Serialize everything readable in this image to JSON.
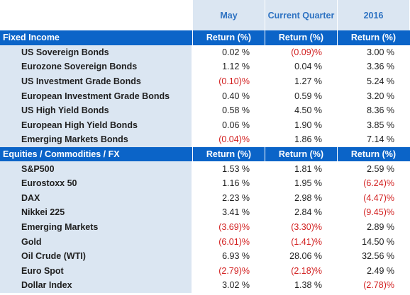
{
  "columns": [
    "May",
    "Current Quarter",
    "2016"
  ],
  "sections": [
    {
      "title": "Fixed Income",
      "subheaders": [
        "Return (%)",
        "Return (%)",
        "Return (%)"
      ],
      "rows": [
        {
          "name": "US Sovereign Bonds",
          "values": [
            "0.02 %",
            "(0.09)%",
            "3.00 %"
          ],
          "neg": [
            false,
            true,
            false
          ]
        },
        {
          "name": "Eurozone Sovereign Bonds",
          "values": [
            "1.12 %",
            "0.04 %",
            "3.36 %"
          ],
          "neg": [
            false,
            false,
            false
          ]
        },
        {
          "name": "US Investment Grade Bonds",
          "values": [
            "(0.10)%",
            "1.27 %",
            "5.24 %"
          ],
          "neg": [
            true,
            false,
            false
          ]
        },
        {
          "name": "European Investment Grade Bonds",
          "values": [
            "0.40 %",
            "0.59 %",
            "3.20 %"
          ],
          "neg": [
            false,
            false,
            false
          ]
        },
        {
          "name": "US High Yield Bonds",
          "values": [
            "0.58 %",
            "4.50 %",
            "8.36 %"
          ],
          "neg": [
            false,
            false,
            false
          ]
        },
        {
          "name": "European High Yield Bonds",
          "values": [
            "0.06 %",
            "1.90 %",
            "3.85 %"
          ],
          "neg": [
            false,
            false,
            false
          ]
        },
        {
          "name": "Emerging Markets Bonds",
          "values": [
            "(0.04)%",
            "1.86 %",
            "7.14 %"
          ],
          "neg": [
            true,
            false,
            false
          ]
        }
      ]
    },
    {
      "title": "Equities / Commodities / FX",
      "subheaders": [
        "Return (%)",
        "Return (%)",
        "Return (%)"
      ],
      "rows": [
        {
          "name": "S&P500",
          "values": [
            "1.53 %",
            "1.81 %",
            "2.59 %"
          ],
          "neg": [
            false,
            false,
            false
          ]
        },
        {
          "name": "Eurostoxx 50",
          "values": [
            "1.16 %",
            "1.95 %",
            "(6.24)%"
          ],
          "neg": [
            false,
            false,
            true
          ]
        },
        {
          "name": "DAX",
          "values": [
            "2.23 %",
            "2.98 %",
            "(4.47)%"
          ],
          "neg": [
            false,
            false,
            true
          ]
        },
        {
          "name": "Nikkei 225",
          "values": [
            "3.41 %",
            "2.84 %",
            "(9.45)%"
          ],
          "neg": [
            false,
            false,
            true
          ]
        },
        {
          "name": "Emerging Markets",
          "values": [
            "(3.69)%",
            "(3.30)%",
            "2.89 %"
          ],
          "neg": [
            true,
            true,
            false
          ]
        },
        {
          "name": "Gold",
          "values": [
            "(6.01)%",
            "(1.41)%",
            "14.50 %"
          ],
          "neg": [
            true,
            true,
            false
          ]
        },
        {
          "name": "Oil Crude (WTI)",
          "values": [
            "6.93 %",
            "28.06 %",
            "32.56 %"
          ],
          "neg": [
            false,
            false,
            false
          ]
        },
        {
          "name": "Euro Spot",
          "values": [
            "(2.79)%",
            "(2.18)%",
            "2.49 %"
          ],
          "neg": [
            true,
            true,
            false
          ]
        },
        {
          "name": "Dollar Index",
          "values": [
            "3.02 %",
            "1.38 %",
            "(2.78)%"
          ],
          "neg": [
            false,
            false,
            true
          ]
        }
      ]
    }
  ],
  "colors": {
    "section_bg": "#0b64c8",
    "label_bg": "#dbe6f2",
    "header_text": "#2d72c2",
    "negative_text": "#d21f1f"
  }
}
